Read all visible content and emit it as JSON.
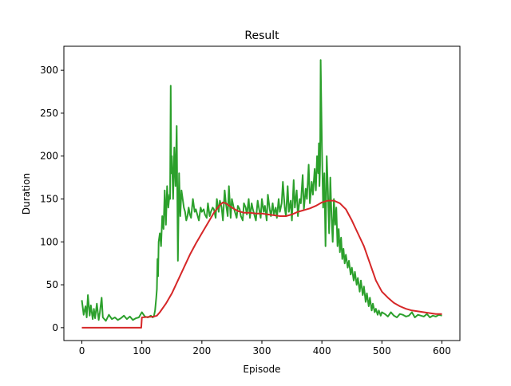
{
  "chart_data": {
    "type": "line",
    "title": "Result",
    "xlabel": "Episode",
    "ylabel": "Duration",
    "xlim": [
      -30,
      630
    ],
    "ylim": [
      -15,
      328
    ],
    "x_ticks": [
      0,
      100,
      200,
      300,
      400,
      500,
      600
    ],
    "y_ticks": [
      0,
      50,
      100,
      150,
      200,
      250,
      300
    ],
    "grid": false,
    "legend": "none",
    "colors": {
      "duration": "#2ca02c",
      "average": "#d62728"
    },
    "series": [
      {
        "key": "duration",
        "x": [
          0,
          3,
          6,
          8,
          10,
          13,
          15,
          18,
          20,
          22,
          25,
          28,
          30,
          33,
          35,
          40,
          45,
          50,
          55,
          60,
          65,
          70,
          75,
          80,
          85,
          90,
          95,
          100,
          105,
          110,
          115,
          118,
          120,
          122,
          124,
          125,
          126,
          127,
          128,
          130,
          132,
          134,
          136,
          138,
          140,
          142,
          144,
          146,
          147,
          148,
          149,
          150,
          152,
          154,
          156,
          158,
          160,
          162,
          164,
          166,
          168,
          170,
          172,
          174,
          176,
          178,
          180,
          182,
          185,
          188,
          190,
          193,
          195,
          198,
          200,
          203,
          205,
          208,
          210,
          213,
          215,
          218,
          220,
          223,
          225,
          228,
          230,
          233,
          235,
          238,
          240,
          243,
          245,
          248,
          250,
          253,
          255,
          258,
          260,
          263,
          265,
          268,
          270,
          273,
          275,
          278,
          280,
          283,
          285,
          288,
          290,
          293,
          295,
          298,
          300,
          303,
          305,
          308,
          310,
          313,
          315,
          318,
          320,
          323,
          325,
          328,
          330,
          333,
          335,
          338,
          340,
          343,
          345,
          348,
          350,
          353,
          355,
          358,
          360,
          363,
          365,
          368,
          370,
          373,
          375,
          378,
          380,
          383,
          385,
          388,
          390,
          392,
          394,
          395,
          396,
          397,
          398,
          400,
          402,
          404,
          406,
          408,
          410,
          412,
          414,
          416,
          418,
          420,
          422,
          424,
          426,
          428,
          430,
          432,
          434,
          436,
          438,
          440,
          443,
          445,
          448,
          450,
          453,
          455,
          458,
          460,
          463,
          465,
          468,
          470,
          473,
          475,
          478,
          480,
          483,
          485,
          488,
          490,
          493,
          495,
          498,
          500,
          505,
          510,
          515,
          520,
          525,
          530,
          535,
          540,
          545,
          550,
          555,
          560,
          565,
          570,
          575,
          580,
          585,
          590,
          595,
          600
        ],
        "y": [
          32,
          15,
          25,
          12,
          38,
          14,
          26,
          10,
          22,
          11,
          28,
          9,
          18,
          35,
          12,
          8,
          15,
          10,
          12,
          9,
          11,
          14,
          10,
          13,
          9,
          11,
          12,
          18,
          13,
          12,
          14,
          12,
          13,
          20,
          35,
          45,
          80,
          60,
          100,
          110,
          95,
          130,
          115,
          160,
          120,
          165,
          140,
          155,
          150,
          282,
          180,
          200,
          150,
          210,
          165,
          235,
          78,
          180,
          130,
          160,
          150,
          140,
          135,
          125,
          130,
          140,
          132,
          128,
          150,
          135,
          138,
          130,
          125,
          140,
          135,
          138,
          132,
          128,
          145,
          130,
          135,
          140,
          138,
          128,
          150,
          135,
          148,
          140,
          125,
          160,
          145,
          130,
          165,
          128,
          150,
          140,
          135,
          128,
          142,
          138,
          130,
          125,
          145,
          140,
          132,
          150,
          128,
          145,
          138,
          130,
          125,
          148,
          140,
          128,
          150,
          135,
          142,
          125,
          155,
          138,
          130,
          145,
          132,
          140,
          128,
          150,
          135,
          145,
          170,
          140,
          130,
          165,
          135,
          148,
          125,
          172,
          140,
          160,
          130,
          150,
          145,
          178,
          138,
          162,
          150,
          190,
          145,
          170,
          155,
          185,
          160,
          200,
          180,
          215,
          165,
          190,
          312,
          210,
          140,
          180,
          95,
          200,
          160,
          110,
          175,
          130,
          100,
          150,
          120,
          140,
          95,
          115,
          88,
          105,
          80,
          92,
          75,
          85,
          70,
          78,
          62,
          70,
          55,
          65,
          50,
          58,
          42,
          55,
          38,
          48,
          30,
          40,
          25,
          35,
          20,
          28,
          18,
          22,
          15,
          20,
          14,
          18,
          16,
          13,
          18,
          14,
          12,
          16,
          15,
          13,
          14,
          18,
          12,
          15,
          14,
          13,
          16,
          12,
          14,
          13,
          15,
          14
        ]
      },
      {
        "key": "average",
        "x": [
          0,
          20,
          40,
          60,
          80,
          99,
          100,
          120,
          125,
          130,
          140,
          150,
          160,
          170,
          180,
          190,
          200,
          210,
          220,
          230,
          235,
          240,
          250,
          260,
          270,
          280,
          290,
          300,
          310,
          320,
          330,
          340,
          350,
          360,
          370,
          380,
          390,
          400,
          410,
          420,
          430,
          440,
          450,
          460,
          470,
          480,
          490,
          500,
          510,
          520,
          530,
          540,
          550,
          560,
          570,
          580,
          590,
          600
        ],
        "y": [
          0,
          0,
          0,
          0,
          0,
          0,
          12,
          13,
          14,
          18,
          28,
          40,
          55,
          70,
          85,
          98,
          110,
          122,
          134,
          143,
          146,
          145,
          140,
          136,
          134,
          134,
          133,
          133,
          132,
          131,
          130,
          130,
          132,
          135,
          137,
          139,
          142,
          146,
          148,
          148,
          145,
          138,
          125,
          110,
          95,
          75,
          55,
          42,
          35,
          29,
          25,
          22,
          20,
          19,
          18,
          17,
          16,
          16
        ]
      }
    ]
  }
}
